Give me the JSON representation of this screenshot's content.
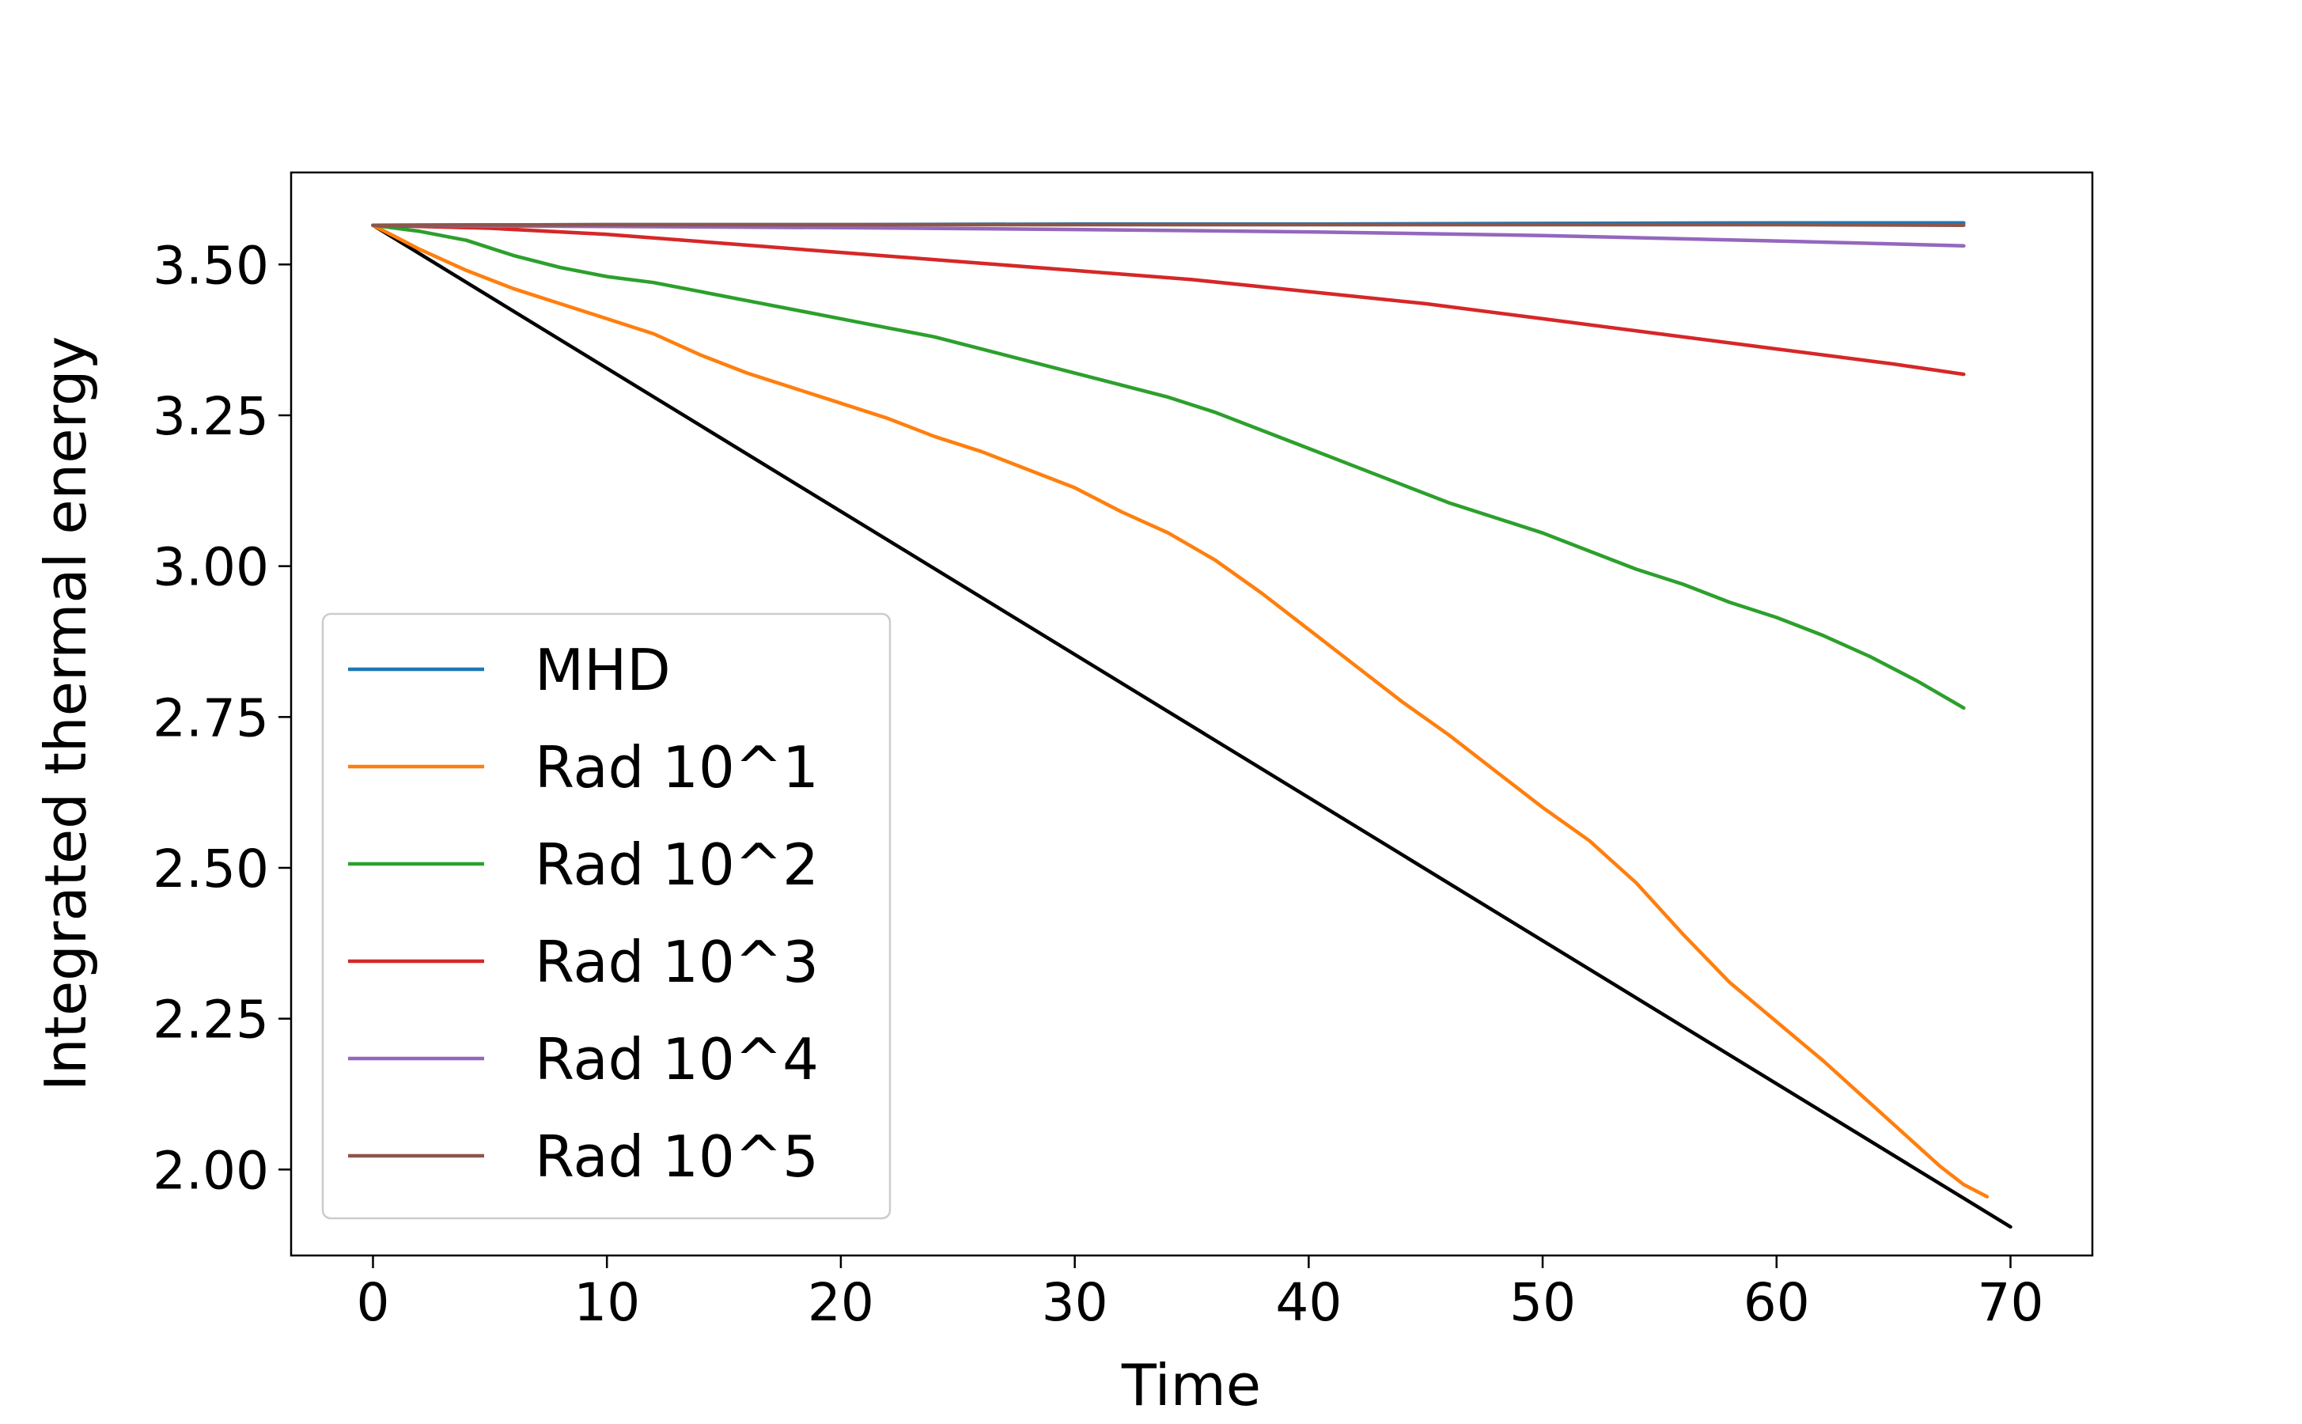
{
  "chart_data": {
    "type": "line",
    "title": "",
    "xlabel": "Time",
    "ylabel": "Integrated thermal energy",
    "xlim": [
      -3.5,
      73.5
    ],
    "ylim": [
      1.8575,
      3.6525
    ],
    "x_ticks": [
      0,
      10,
      20,
      30,
      40,
      50,
      60,
      70
    ],
    "x_tick_labels": [
      "0",
      "10",
      "20",
      "30",
      "40",
      "50",
      "60",
      "70"
    ],
    "y_ticks": [
      2.0,
      2.25,
      2.5,
      2.75,
      3.0,
      3.25,
      3.5
    ],
    "y_tick_labels": [
      "2.00",
      "2.25",
      "2.50",
      "2.75",
      "3.00",
      "3.25",
      "3.50"
    ],
    "grid": false,
    "legend_position": "lower-left",
    "series": [
      {
        "name": "MHD",
        "color": "#1f77b4",
        "x": [
          0,
          10,
          20,
          30,
          40,
          50,
          60,
          68
        ],
        "y": [
          3.565,
          3.566,
          3.566,
          3.567,
          3.567,
          3.568,
          3.569,
          3.569
        ]
      },
      {
        "name": "Rad 10^1",
        "color": "#ff7f0e",
        "x": [
          0,
          2,
          4,
          6,
          8,
          10,
          12,
          14,
          16,
          18,
          20,
          22,
          24,
          26,
          28,
          30,
          32,
          34,
          36,
          38,
          40,
          42,
          44,
          46,
          48,
          50,
          52,
          54,
          56,
          58,
          60,
          62,
          64,
          66,
          67,
          68,
          69
        ],
        "y": [
          3.565,
          3.525,
          3.49,
          3.46,
          3.435,
          3.41,
          3.385,
          3.35,
          3.32,
          3.295,
          3.27,
          3.245,
          3.215,
          3.19,
          3.16,
          3.13,
          3.09,
          3.055,
          3.01,
          2.955,
          2.895,
          2.835,
          2.775,
          2.72,
          2.66,
          2.6,
          2.545,
          2.475,
          2.39,
          2.31,
          2.245,
          2.18,
          2.11,
          2.04,
          2.005,
          1.975,
          1.955
        ]
      },
      {
        "name": "Rad 10^2",
        "color": "#2ca02c",
        "x": [
          0,
          2,
          4,
          6,
          8,
          10,
          12,
          14,
          16,
          18,
          20,
          22,
          24,
          26,
          28,
          30,
          32,
          34,
          36,
          38,
          40,
          42,
          44,
          46,
          48,
          50,
          52,
          54,
          56,
          58,
          60,
          62,
          64,
          66,
          68
        ],
        "y": [
          3.565,
          3.555,
          3.54,
          3.515,
          3.495,
          3.48,
          3.47,
          3.455,
          3.44,
          3.425,
          3.41,
          3.395,
          3.38,
          3.36,
          3.34,
          3.32,
          3.3,
          3.28,
          3.255,
          3.225,
          3.195,
          3.165,
          3.135,
          3.105,
          3.08,
          3.055,
          3.025,
          2.995,
          2.97,
          2.94,
          2.915,
          2.885,
          2.85,
          2.81,
          2.765
        ]
      },
      {
        "name": "Rad 10^3",
        "color": "#d62728",
        "x": [
          0,
          5,
          10,
          15,
          20,
          25,
          30,
          35,
          40,
          45,
          50,
          55,
          60,
          65,
          68
        ],
        "y": [
          3.565,
          3.56,
          3.55,
          3.535,
          3.52,
          3.505,
          3.49,
          3.475,
          3.455,
          3.435,
          3.41,
          3.385,
          3.36,
          3.335,
          3.318
        ]
      },
      {
        "name": "Rad 10^4",
        "color": "#9467bd",
        "x": [
          0,
          10,
          20,
          30,
          40,
          50,
          60,
          68
        ],
        "y": [
          3.565,
          3.563,
          3.561,
          3.558,
          3.554,
          3.548,
          3.539,
          3.531
        ]
      },
      {
        "name": "Rad 10^5",
        "color": "#8c564b",
        "x": [
          0,
          10,
          20,
          30,
          40,
          50,
          60,
          68
        ],
        "y": [
          3.565,
          3.566,
          3.566,
          3.566,
          3.566,
          3.566,
          3.566,
          3.565
        ]
      }
    ],
    "reference_line": {
      "color": "#000000",
      "x": [
        0,
        70
      ],
      "y": [
        3.565,
        1.905
      ]
    }
  }
}
